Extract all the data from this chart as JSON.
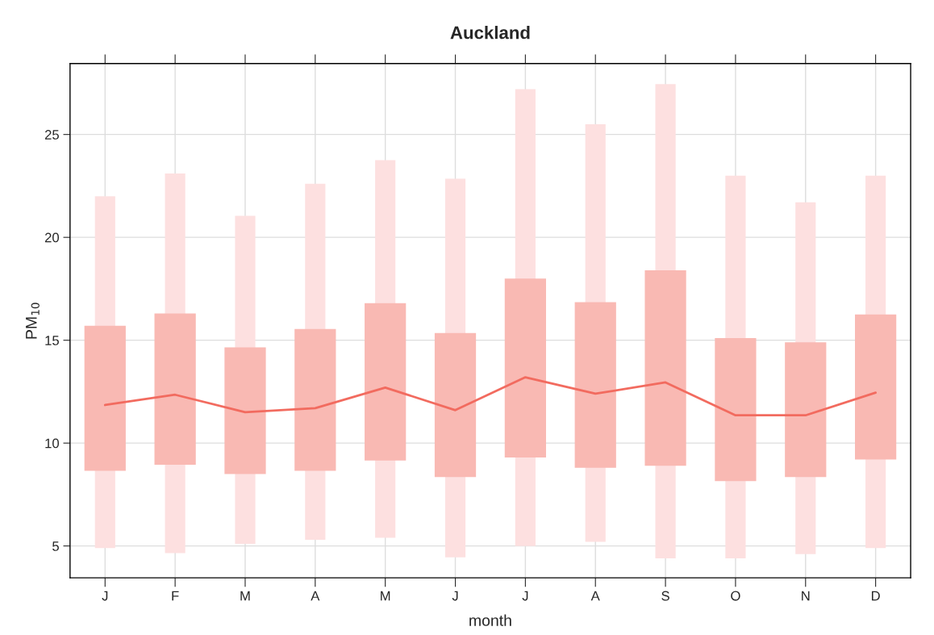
{
  "chart_data": {
    "type": "bar",
    "title": "Auckland",
    "xlabel": "month",
    "ylabel": "PM$_{10}$",
    "categories": [
      "J",
      "F",
      "M",
      "A",
      "M",
      "J",
      "J",
      "A",
      "S",
      "O",
      "N",
      "D"
    ],
    "series": [
      {
        "color": "#fde0e0",
        "base": [
          4.9,
          4.65,
          5.1,
          5.3,
          5.4,
          4.45,
          5.0,
          5.2,
          4.4,
          4.4,
          4.6,
          4.9
        ],
        "values": [
          17.1,
          18.45,
          15.95,
          17.3,
          18.35,
          18.4,
          22.2,
          20.3,
          23.05,
          18.6,
          17.1,
          18.1
        ]
      },
      {
        "type": "bar",
        "color": "#f9b9b3",
        "base": [
          8.65,
          8.95,
          8.5,
          8.65,
          9.15,
          8.35,
          9.3,
          8.8,
          8.9,
          8.15,
          8.35,
          9.2
        ],
        "values": [
          7.05,
          7.35,
          6.15,
          6.9,
          7.65,
          7.0,
          8.7,
          8.05,
          9.5,
          6.95,
          6.55,
          7.05
        ]
      },
      {
        "type": "line",
        "color": "#f26b5f",
        "values": [
          11.85,
          12.35,
          11.5,
          11.7,
          12.7,
          11.6,
          13.2,
          12.4,
          12.95,
          11.35,
          11.35,
          12.45
        ]
      }
    ],
    "ylim": [
      3.45,
      28.45
    ],
    "yticks": [
      5,
      10,
      15,
      20,
      25
    ],
    "grid": true,
    "legend": false
  }
}
